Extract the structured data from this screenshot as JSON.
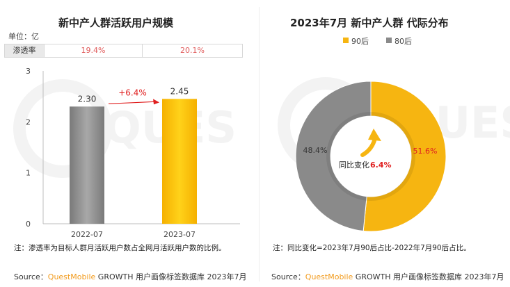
{
  "watermark": "QUES",
  "left_chart": {
    "title": "新中产人群活跃用户规模",
    "unit": "单位：亿",
    "penetration": {
      "label": "渗透率",
      "values": [
        "19.4%",
        "20.1%"
      ]
    },
    "growth_label": "+6.4%",
    "note": "注：渗透率为目标人群月活跃用户数占全网月活跃用户数的比例。",
    "source": {
      "prefix": "Source：",
      "brand": "QuestMobile",
      "rest": " GROWTH 用户画像标签数据库 2023年7月"
    }
  },
  "right_chart": {
    "title": "2023年7月 新中产人群 代际分布",
    "center_label": "同比变化",
    "center_value": "6.4%",
    "note": "注：同比变化=2023年7月90后占比-2022年7月90后占比。",
    "source": {
      "prefix": "Source：",
      "brand": "QuestMobile",
      "rest": " GROWTH 用户画像标签数据库 2023年7月"
    }
  },
  "colors": {
    "gray": "#8a8a8a",
    "yellow": "#f6b511",
    "red": "#e02020",
    "ring_light": "#ececec"
  },
  "chart_data": [
    {
      "type": "bar",
      "title": "新中产人群活跃用户规模",
      "categories": [
        "2022-07",
        "2023-07"
      ],
      "values": [
        2.3,
        2.45
      ],
      "value_labels": [
        "2.30",
        "2.45"
      ],
      "ylim": [
        0,
        3
      ],
      "yticks": [
        "0",
        "1",
        "2",
        "3"
      ],
      "ylabel": "单位：亿",
      "xlabel": "",
      "annotation": "+6.4%"
    },
    {
      "type": "pie",
      "title": "2023年7月 新中产人群 代际分布",
      "labels": [
        "90后",
        "80后"
      ],
      "values": [
        51.6,
        48.4
      ],
      "value_labels": [
        "51.6%",
        "48.4%"
      ],
      "legend_position": "top"
    }
  ]
}
